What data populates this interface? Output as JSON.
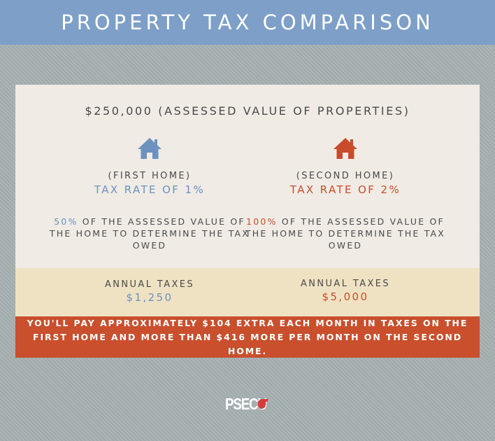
{
  "header": {
    "title": "PROPERTY TAX COMPARISON"
  },
  "card": {
    "subtitle": "$250,000 (ASSESSED VALUE OF PROPERTIES)",
    "first_home": {
      "icon": "house-icon",
      "label": "(FIRST HOME)",
      "rate": "TAX RATE OF 1%",
      "percent": "50%",
      "description": "OF THE ASSESSED VALUE OF THE HOME TO DETERMINE THE TAX OWED",
      "annual_label": "ANNUAL TAXES",
      "annual_value": "$1,250",
      "accent": "#6d92bf"
    },
    "second_home": {
      "icon": "house-icon",
      "label": "(SECOND HOME)",
      "rate": "TAX RATE OF 2%",
      "percent": "100%",
      "description": "OF THE ASSESSED VALUE OF THE HOME TO DETERMINE THE TAX OWED",
      "annual_label": "ANNUAL TAXES",
      "annual_value": "$5,000",
      "accent": "#c84c2c"
    }
  },
  "footer_note": "YOU'LL PAY APPROXIMATELY $104 EXTRA EACH MONTH IN TAXES ON THE FIRST HOME AND MORE THAN $416 MORE PER MONTH ON THE SECOND HOME.",
  "logo": {
    "text": "PSECU",
    "icon": "psecu-logo-icon"
  },
  "colors": {
    "header": "#7d9fc8",
    "card": "#f0ebe5",
    "tax_band": "#efe2c3",
    "red_band": "#c94f2d"
  }
}
